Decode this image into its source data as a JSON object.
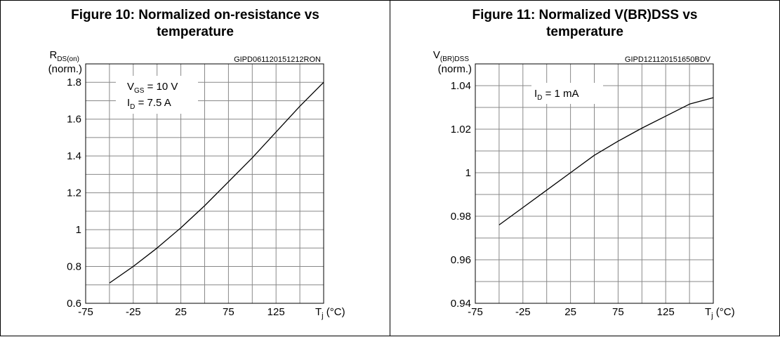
{
  "charts": [
    {
      "title_line1": "Figure 10: Normalized on-resistance vs",
      "title_line2": "temperature",
      "code": "GIPD061120151212RON",
      "ylabel_main": "R",
      "ylabel_sub": "DS(on)",
      "ylabel_line2": "(norm.)",
      "xlabel_main": "T",
      "xlabel_sub": "j",
      "xlabel_unit": "(°C)",
      "annotation": [
        {
          "main": "V",
          "sub": "GS",
          "rest": " = 10 V"
        },
        {
          "main": "I",
          "sub": "D",
          "rest": " = 7.5 A"
        }
      ]
    },
    {
      "title_line1": "Figure 11: Normalized V(BR)DSS vs",
      "title_line2": "temperature",
      "code": "GIPD121120151650BDV",
      "ylabel_main": "V",
      "ylabel_sub": "(BR)DSS",
      "ylabel_line2": "(norm.)",
      "xlabel_main": "T",
      "xlabel_sub": "j",
      "xlabel_unit": "(°C)",
      "annotation": [
        {
          "main": "I",
          "sub": "D",
          "rest": " = 1 mA"
        }
      ]
    }
  ],
  "chart_data": [
    {
      "type": "line",
      "title": "Figure 10: Normalized on-resistance vs temperature",
      "xlabel": "Tj (°C)",
      "ylabel": "RDS(on) (norm.)",
      "xlim": [
        -75,
        175
      ],
      "ylim": [
        0.6,
        1.9
      ],
      "x_ticks": [
        -75,
        -25,
        25,
        75,
        125
      ],
      "x_tick_labels": [
        "-75",
        "-25",
        "25",
        "75",
        "125"
      ],
      "y_ticks": [
        0.6,
        0.8,
        1,
        1.2,
        1.4,
        1.6,
        1.8
      ],
      "y_tick_labels": [
        "0.6",
        "0.8",
        "1",
        "1.2",
        "1.4",
        "1.6",
        "1.8"
      ],
      "grid": true,
      "series": [
        {
          "x": [
            -50,
            -25,
            0,
            25,
            50,
            75,
            100,
            125,
            150,
            175
          ],
          "y": [
            0.71,
            0.8,
            0.9,
            1.01,
            1.13,
            1.26,
            1.39,
            1.53,
            1.67,
            1.8
          ]
        }
      ]
    },
    {
      "type": "line",
      "title": "Figure 11: Normalized V(BR)DSS vs temperature",
      "xlabel": "Tj (°C)",
      "ylabel": "V(BR)DSS (norm.)",
      "xlim": [
        -75,
        175
      ],
      "ylim": [
        0.94,
        1.05
      ],
      "x_ticks": [
        -75,
        -25,
        25,
        75,
        125
      ],
      "x_tick_labels": [
        "-75",
        "-25",
        "25",
        "75",
        "125"
      ],
      "y_ticks": [
        0.94,
        0.96,
        0.98,
        1,
        1.02,
        1.04
      ],
      "y_tick_labels": [
        "0.94",
        "0.96",
        "0.98",
        "1",
        "1.02",
        "1.04"
      ],
      "grid": true,
      "series": [
        {
          "x": [
            -50,
            -25,
            0,
            25,
            50,
            75,
            100,
            125,
            150,
            175
          ],
          "y": [
            0.976,
            0.984,
            0.992,
            1.0,
            1.008,
            1.0145,
            1.0205,
            1.026,
            1.0315,
            1.0345
          ]
        }
      ]
    }
  ]
}
